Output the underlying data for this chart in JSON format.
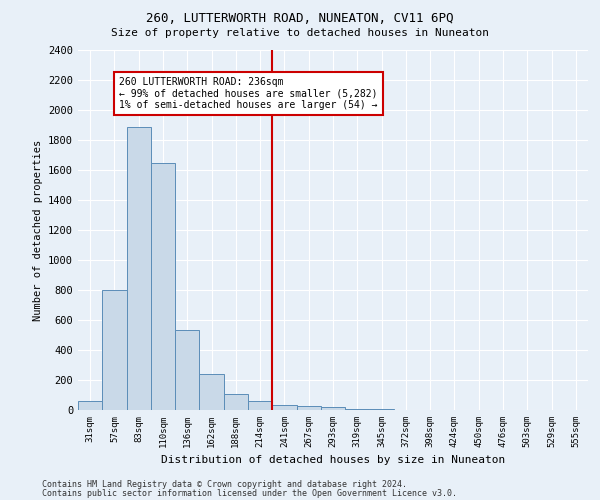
{
  "title": "260, LUTTERWORTH ROAD, NUNEATON, CV11 6PQ",
  "subtitle": "Size of property relative to detached houses in Nuneaton",
  "xlabel": "Distribution of detached houses by size in Nuneaton",
  "ylabel": "Number of detached properties",
  "bar_labels": [
    "31sqm",
    "57sqm",
    "83sqm",
    "110sqm",
    "136sqm",
    "162sqm",
    "188sqm",
    "214sqm",
    "241sqm",
    "267sqm",
    "293sqm",
    "319sqm",
    "345sqm",
    "372sqm",
    "398sqm",
    "424sqm",
    "450sqm",
    "476sqm",
    "503sqm",
    "529sqm",
    "555sqm"
  ],
  "bar_values": [
    60,
    800,
    1890,
    1650,
    535,
    240,
    105,
    60,
    35,
    25,
    18,
    10,
    5,
    3,
    2,
    1,
    1,
    0,
    0,
    0,
    0
  ],
  "bar_color": "#c9d9e8",
  "bar_edge_color": "#5b8db8",
  "ylim": [
    0,
    2400
  ],
  "yticks": [
    0,
    200,
    400,
    600,
    800,
    1000,
    1200,
    1400,
    1600,
    1800,
    2000,
    2200,
    2400
  ],
  "property_bin_index": 8,
  "annotation_title": "260 LUTTERWORTH ROAD: 236sqm",
  "annotation_line1": "← 99% of detached houses are smaller (5,282)",
  "annotation_line2": "1% of semi-detached houses are larger (54) →",
  "vline_color": "#cc0000",
  "annotation_box_color": "#ffffff",
  "annotation_box_edge": "#cc0000",
  "footer1": "Contains HM Land Registry data © Crown copyright and database right 2024.",
  "footer2": "Contains public sector information licensed under the Open Government Licence v3.0.",
  "background_color": "#e8f0f8",
  "grid_color": "#ffffff"
}
